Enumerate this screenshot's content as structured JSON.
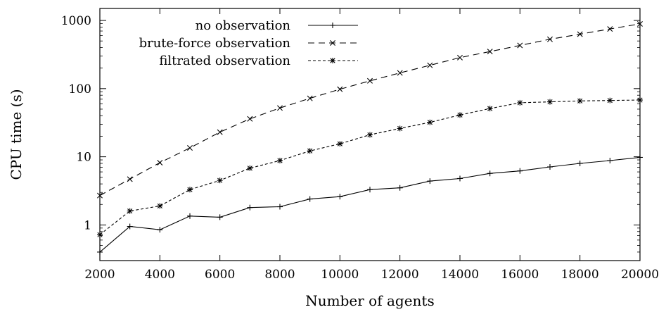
{
  "chart_data": {
    "type": "line",
    "xlabel": "Number of agents",
    "ylabel": "CPU time (s)",
    "y_scale": "log",
    "xlim": [
      2000,
      20000
    ],
    "ylim": [
      0.3,
      1500
    ],
    "x_ticks": [
      2000,
      4000,
      6000,
      8000,
      10000,
      12000,
      14000,
      16000,
      18000,
      20000
    ],
    "x_tick_labels": [
      "2000",
      "4000",
      "6000",
      "8000",
      "10000",
      "12000",
      "14000",
      "16000",
      "18000",
      "20000"
    ],
    "y_ticks": [
      1,
      10,
      100,
      1000
    ],
    "y_tick_labels": [
      "1",
      "10",
      "100",
      "1000"
    ],
    "grid": false,
    "legend_position": "top-left",
    "x": [
      2000,
      3000,
      4000,
      5000,
      6000,
      7000,
      8000,
      9000,
      10000,
      11000,
      12000,
      13000,
      14000,
      15000,
      16000,
      17000,
      18000,
      19000,
      20000
    ],
    "series": [
      {
        "name": "no observation",
        "line_style": "solid",
        "marker": "plus",
        "values": [
          0.4,
          0.95,
          0.85,
          1.35,
          1.3,
          1.8,
          1.85,
          2.4,
          2.6,
          3.3,
          3.5,
          4.4,
          4.8,
          5.7,
          6.2,
          7.1,
          8.0,
          8.8,
          9.8
        ]
      },
      {
        "name": "brute-force observation",
        "line_style": "dashed",
        "marker": "cross",
        "values": [
          2.7,
          4.7,
          8.2,
          13.5,
          23,
          36,
          52,
          72,
          98,
          130,
          170,
          220,
          285,
          350,
          430,
          530,
          630,
          750,
          890
        ]
      },
      {
        "name": "filtrated observation",
        "line_style": "dotted",
        "marker": "star",
        "values": [
          0.72,
          1.6,
          1.9,
          3.3,
          4.5,
          6.8,
          8.8,
          12.2,
          15.5,
          21,
          26,
          32,
          41,
          51,
          62,
          64,
          66,
          67,
          68
        ]
      }
    ]
  }
}
